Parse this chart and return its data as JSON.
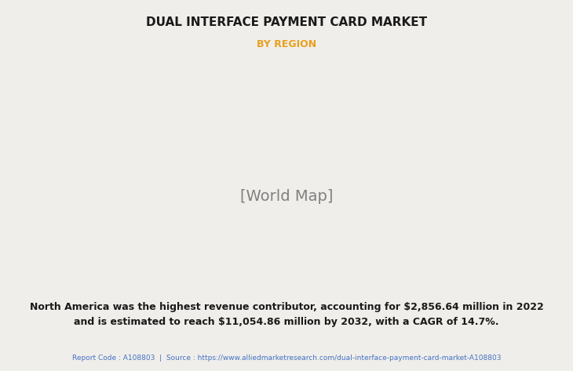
{
  "title": "DUAL INTERFACE PAYMENT CARD MARKET",
  "subtitle": "BY REGION",
  "subtitle_color": "#E8A020",
  "title_color": "#1a1a1a",
  "background_color": "#f0eeea",
  "map_land_color": "#7dab7d",
  "map_highlight_color": "#e8e8e8",
  "map_border_color": "#a0b8d0",
  "map_shadow_color": "#999999",
  "body_text": "North America was the highest revenue contributor, accounting for $2,856.64 million in 2022\nand is estimated to reach $11,054.86 million by 2032, with a CAGR of 14.7%.",
  "footer_text": "Report Code : A108803  |  Source : https://www.alliedmarketresearch.com/dual-interface-payment-card-market-A108803",
  "footer_color": "#4472c4",
  "body_text_color": "#1a1a1a",
  "divider_color": "#bbbbbb"
}
